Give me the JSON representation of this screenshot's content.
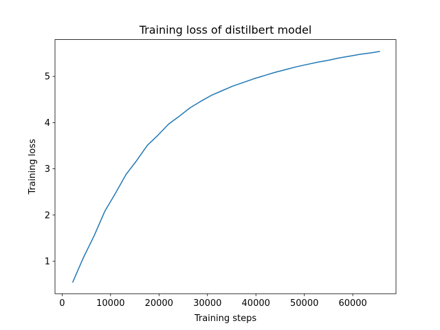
{
  "chart_data": {
    "type": "line",
    "title": "Training loss of distilbert model",
    "xlabel": "Training steps",
    "ylabel": "Training loss",
    "xlim": [
      -1470,
      68920
    ],
    "ylim": [
      0.298,
      5.797
    ],
    "x_ticks": [
      0,
      10000,
      20000,
      30000,
      40000,
      50000,
      60000
    ],
    "y_ticks": [
      1,
      2,
      3,
      4,
      5
    ],
    "grid": false,
    "series": [
      {
        "color": "#1f77b4",
        "x": [
          2200,
          4400,
          6600,
          8800,
          11000,
          13200,
          15400,
          17600,
          19800,
          22000,
          24200,
          26400,
          28600,
          30800,
          33000,
          35200,
          37400,
          39600,
          41800,
          44000,
          46200,
          48400,
          50600,
          52800,
          55000,
          57200,
          59400,
          61600,
          63800,
          65500
        ],
        "y": [
          0.55,
          1.08,
          1.55,
          2.08,
          2.47,
          2.88,
          3.18,
          3.51,
          3.73,
          3.97,
          4.14,
          4.32,
          4.46,
          4.59,
          4.69,
          4.79,
          4.87,
          4.95,
          5.02,
          5.09,
          5.15,
          5.21,
          5.26,
          5.31,
          5.35,
          5.4,
          5.44,
          5.48,
          5.51,
          5.54
        ]
      }
    ]
  }
}
